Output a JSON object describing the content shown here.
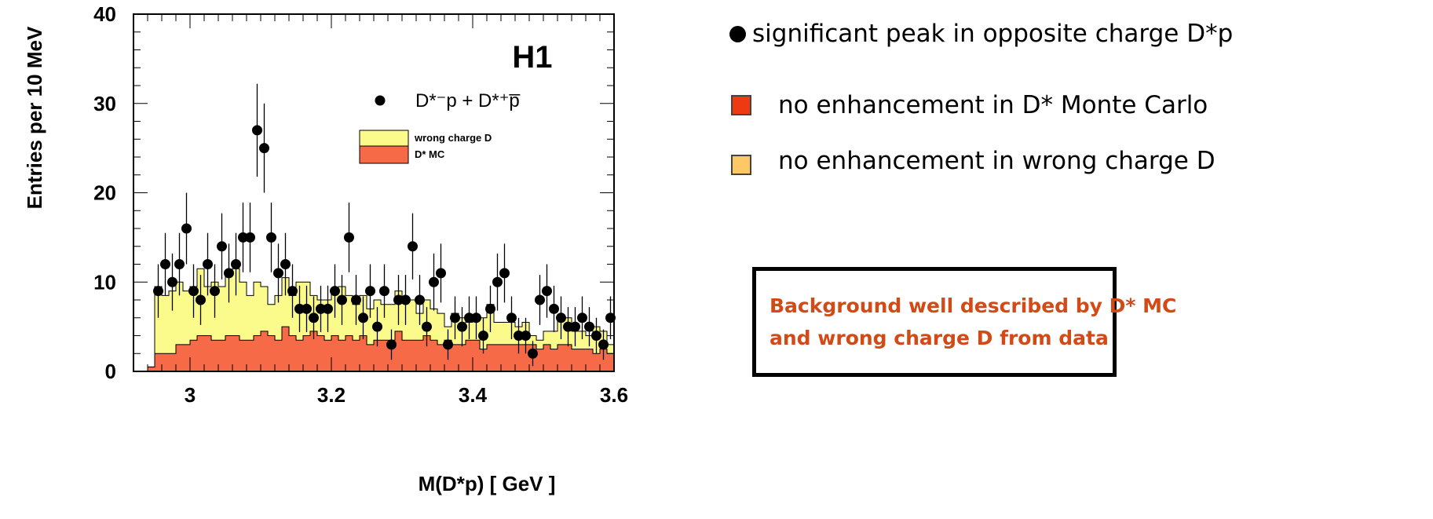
{
  "chart_data": {
    "type": "histogram",
    "xlabel": "M(D*p) [ GeV ]",
    "ylabel": "Entries per 10 MeV",
    "xlim": [
      2.92,
      3.6
    ],
    "ylim": [
      0,
      40
    ],
    "x_ticks": [
      "3",
      "3.2",
      "3.4",
      "3.6"
    ],
    "y_ticks": [
      "0",
      "10",
      "20",
      "30",
      "40"
    ],
    "experiment_label": "H1",
    "legend": {
      "data_label": "D*⁻p + D*⁺p̅",
      "wrong_charge_label": "wrong charge D",
      "mc_label": "D* MC"
    },
    "colors": {
      "data_points": "#000000",
      "wrong_charge_D": "#fbfb8c",
      "D_star_MC": "#f76a48",
      "frame": "#000000"
    },
    "bin_edges_start": 2.94,
    "bin_width": 0.01,
    "data_points": {
      "x": [
        2.955,
        2.965,
        2.975,
        2.985,
        2.995,
        3.005,
        3.015,
        3.025,
        3.035,
        3.045,
        3.055,
        3.065,
        3.075,
        3.085,
        3.095,
        3.105,
        3.115,
        3.125,
        3.135,
        3.145,
        3.155,
        3.165,
        3.175,
        3.185,
        3.195,
        3.205,
        3.215,
        3.225,
        3.235,
        3.245,
        3.255,
        3.265,
        3.275,
        3.285,
        3.295,
        3.305,
        3.315,
        3.325,
        3.335,
        3.345,
        3.355,
        3.365,
        3.375,
        3.385,
        3.395,
        3.405,
        3.415,
        3.425,
        3.435,
        3.445,
        3.455,
        3.465,
        3.475,
        3.485,
        3.495,
        3.505,
        3.515,
        3.525,
        3.535,
        3.545,
        3.555,
        3.565,
        3.575,
        3.585,
        3.595
      ],
      "y": [
        9,
        12,
        10,
        12,
        16,
        9,
        8,
        12,
        9,
        14,
        11,
        12,
        15,
        15,
        27,
        25,
        15,
        11,
        12,
        9,
        7,
        7,
        6,
        7,
        7,
        9,
        8,
        15,
        8,
        6,
        9,
        5,
        9,
        3,
        8,
        8,
        14,
        8,
        5,
        10,
        11,
        3,
        6,
        5,
        6,
        6,
        4,
        7,
        10,
        11,
        6,
        4,
        4,
        2,
        8,
        9,
        7,
        6,
        5,
        5,
        6,
        5,
        4,
        3,
        6
      ],
      "err": [
        3,
        3.5,
        3.2,
        3.5,
        4,
        3,
        2.8,
        3.5,
        3,
        3.7,
        3.3,
        3.5,
        3.9,
        3.9,
        5.2,
        5,
        3.9,
        3.3,
        3.5,
        3,
        2.6,
        2.6,
        2.4,
        2.6,
        2.6,
        3,
        2.8,
        3.9,
        2.8,
        2.4,
        3,
        2.2,
        3,
        1.7,
        2.8,
        2.8,
        3.7,
        2.8,
        2.2,
        3.2,
        3.3,
        1.7,
        2.4,
        2.2,
        2.4,
        2.4,
        2,
        2.6,
        3.2,
        3.3,
        2.4,
        2,
        2,
        1.4,
        2.8,
        3,
        2.6,
        2.4,
        2.2,
        2.2,
        2.4,
        2.2,
        2,
        1.7,
        2.4
      ]
    },
    "wrong_charge_D_total": [
      0.5,
      9.5,
      8.5,
      9,
      10,
      9,
      9.5,
      11.5,
      9.5,
      10,
      9.5,
      11,
      11.5,
      10,
      8.5,
      10,
      9.5,
      7.5,
      8.5,
      10.5,
      8.5,
      10,
      10,
      8.5,
      8,
      8,
      9,
      9.5,
      8.5,
      7.5,
      8.5,
      7,
      8,
      7.5,
      7.5,
      9,
      8,
      8,
      6.5,
      8,
      7,
      6.5,
      5,
      6.5,
      6,
      5.5,
      6,
      6,
      7.5,
      5.5,
      5.5,
      5.5,
      5,
      5.5,
      4,
      3.5,
      4.5,
      4.5,
      6,
      6,
      4.5,
      4.5,
      4,
      5,
      4.5,
      3
    ],
    "D_star_MC": [
      0.5,
      2,
      2,
      2,
      3,
      3,
      3.5,
      4,
      4,
      3.5,
      3.5,
      4,
      4,
      3.5,
      3.5,
      4,
      4.5,
      4,
      3.5,
      5,
      4,
      3.5,
      4,
      4.5,
      4,
      3.5,
      4,
      3.5,
      4,
      3.5,
      4,
      3,
      3.5,
      3.5,
      3.5,
      4.5,
      3.5,
      3.5,
      3.5,
      4,
      3.5,
      3,
      3.5,
      3,
      3,
      3.5,
      3.5,
      2.5,
      3,
      3,
      3,
      3,
      3,
      3,
      3,
      2.5,
      3,
      2.5,
      3,
      3,
      2.5,
      2.5,
      2.5,
      2,
      2.5,
      2
    ]
  },
  "notes": {
    "items": [
      "significant peak in opposite charge D*p",
      "no enhancement in D* Monte Carlo",
      "no enhancement in wrong charge D"
    ],
    "marker_colors": [
      "#000000",
      "#ee3a10",
      "#ffc866"
    ]
  },
  "conclusion": {
    "line1": "Background well described by D* MC",
    "line2": "and wrong charge D from data"
  }
}
